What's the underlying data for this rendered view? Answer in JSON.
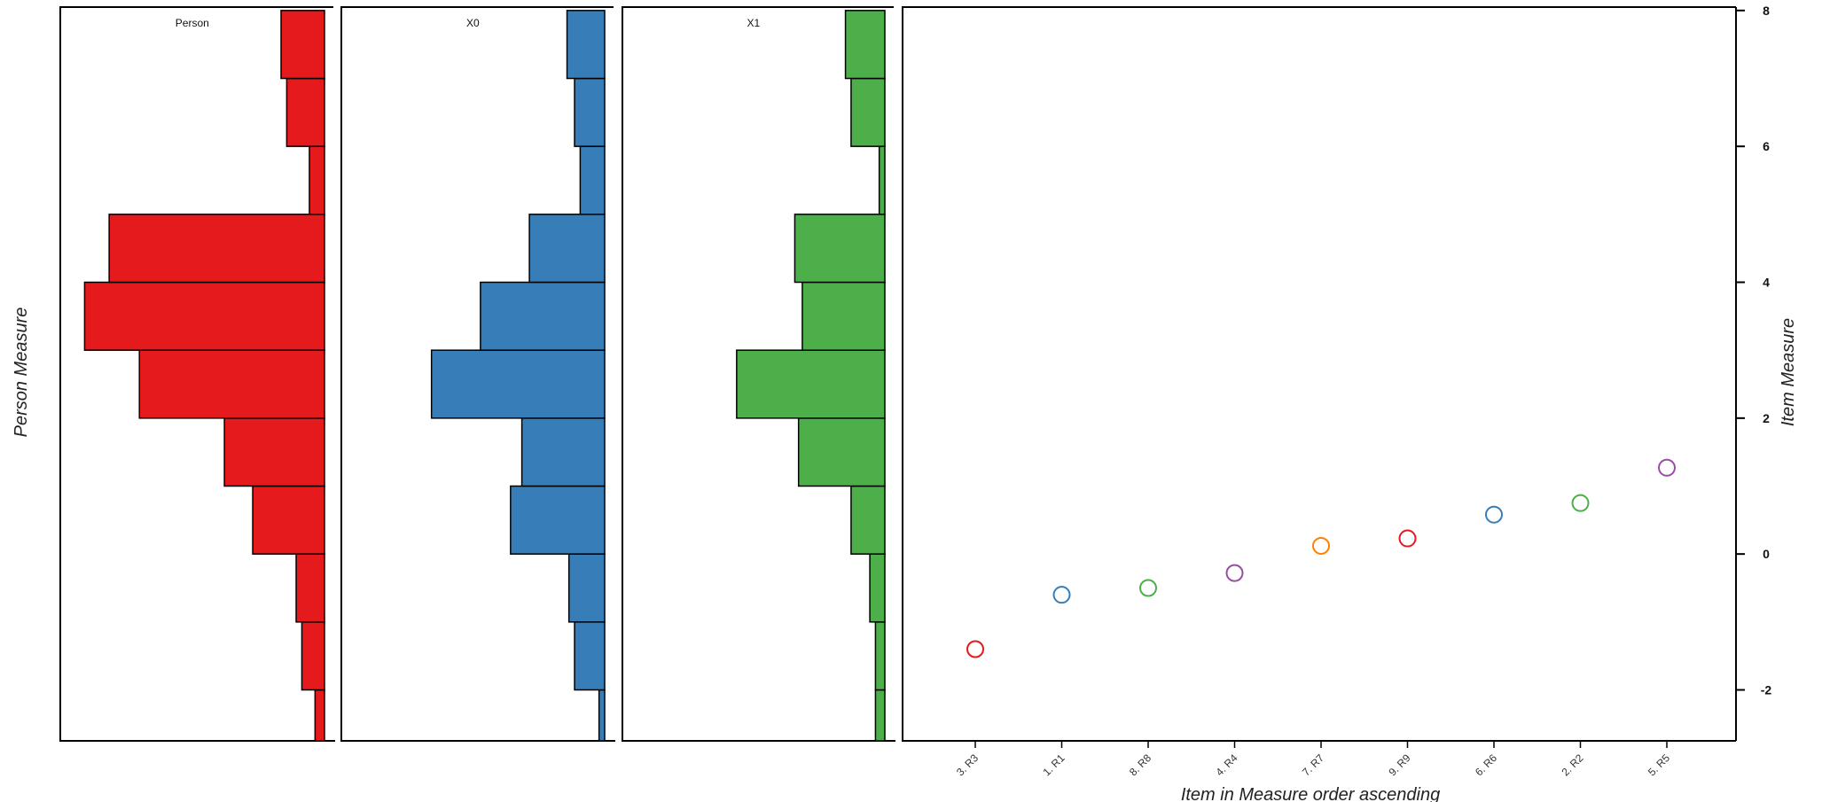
{
  "chart_data": {
    "type": "wright-map",
    "ylabel_left": "Person Measure",
    "ylabel_right": "Item Measure",
    "xlabel": "Item in Measure order ascending",
    "ylim": [
      -2.75,
      8.05
    ],
    "yticks": [
      -2,
      0,
      2,
      4,
      6,
      8
    ],
    "bin_edges": [
      -3,
      -2,
      -1,
      0,
      1,
      2,
      3,
      4,
      5,
      6,
      7,
      8
    ],
    "histograms": [
      {
        "name": "Person",
        "color": "#e41a1c",
        "counts": [
          0.05,
          0.12,
          0.15,
          0.38,
          0.53,
          0.98,
          1.27,
          1.14,
          0.08,
          0.2,
          0.23
        ]
      },
      {
        "name": "X0",
        "color": "#377eb8",
        "counts": [
          0.03,
          0.16,
          0.19,
          0.5,
          0.44,
          0.92,
          0.66,
          0.4,
          0.13,
          0.16,
          0.2
        ]
      },
      {
        "name": "X1",
        "color": "#4daf4a",
        "counts": [
          0.05,
          0.05,
          0.08,
          0.18,
          0.46,
          0.79,
          0.44,
          0.48,
          0.03,
          0.18,
          0.21
        ]
      }
    ],
    "items": {
      "categories": [
        "3. R3",
        "1. R1",
        "8. R8",
        "4. R4",
        "7. R7",
        "9. R9",
        "6. R6",
        "2. R2",
        "5. R5"
      ],
      "values": [
        -1.4,
        -0.6,
        -0.5,
        -0.28,
        0.12,
        0.23,
        0.58,
        0.75,
        1.27
      ],
      "colors": [
        "#e41a1c",
        "#377eb8",
        "#4daf4a",
        "#984ea3",
        "#ff7f00",
        "#e41a1c",
        "#377eb8",
        "#4daf4a",
        "#984ea3"
      ]
    }
  }
}
